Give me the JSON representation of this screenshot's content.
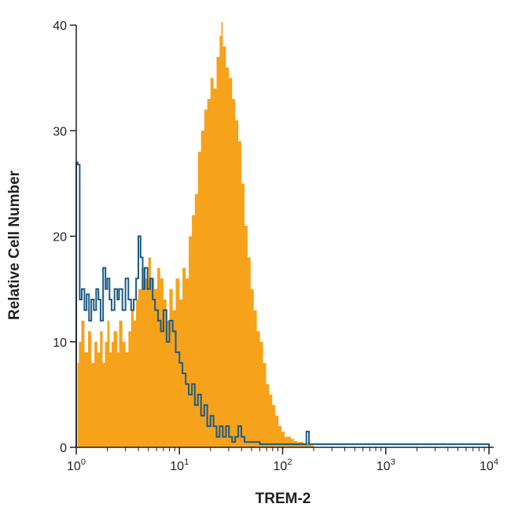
{
  "chart_data": {
    "type": "area",
    "xlabel": "TREM-2",
    "ylabel": "Relative Cell Number",
    "x_scale": "log",
    "xlim": [
      1,
      10000
    ],
    "ylim": [
      0,
      40
    ],
    "x_ticks": [
      1,
      10,
      100,
      1000,
      10000
    ],
    "x_tick_labels": [
      {
        "base": "10",
        "exp": "0"
      },
      {
        "base": "10",
        "exp": "1"
      },
      {
        "base": "10",
        "exp": "2"
      },
      {
        "base": "10",
        "exp": "3"
      },
      {
        "base": "10",
        "exp": "4"
      }
    ],
    "y_ticks": [
      0,
      10,
      20,
      30,
      40
    ],
    "grid": false,
    "legend": "none",
    "colors": {
      "filled": "#f7a21b",
      "outline": "#1b5a86",
      "axis": "#231f20"
    },
    "series": [
      {
        "style": "filled",
        "x": [
          1.0,
          1.03,
          1.06,
          1.12,
          1.2,
          1.3,
          1.4,
          1.5,
          1.6,
          1.7,
          1.8,
          1.9,
          2.0,
          2.1,
          2.2,
          2.3,
          2.5,
          2.6,
          2.8,
          3.0,
          3.2,
          3.4,
          3.6,
          3.8,
          4.0,
          4.3,
          4.6,
          5.0,
          5.3,
          5.7,
          6.1,
          6.5,
          7.0,
          7.5,
          8.0,
          8.6,
          9.2,
          10.0,
          10.7,
          11.5,
          12.3,
          13.2,
          14.1,
          15.1,
          16.2,
          17.4,
          18.6,
          20.0,
          21.4,
          22.9,
          24.5,
          25.5,
          26.3,
          28.2,
          30.2,
          32.4,
          34.7,
          37.2,
          39.8,
          42.7,
          45.7,
          49.0,
          52.5,
          56.2,
          60.3,
          64.6,
          69.2,
          74.1,
          79.4,
          85.1,
          91.2,
          97.7,
          104.7,
          112.2,
          120.2,
          128.8,
          138.0,
          147.9,
          158.5,
          169.8,
          182.0,
          190.0,
          200.0
        ],
        "values": [
          0,
          8,
          10,
          12,
          9,
          11,
          8,
          10,
          9,
          11,
          8,
          10,
          12,
          9,
          10,
          11,
          9,
          12,
          10,
          9,
          11,
          13,
          12,
          14,
          15,
          17,
          16,
          18,
          16,
          15,
          17,
          16,
          14,
          12,
          15,
          13,
          16,
          14,
          17,
          16,
          20,
          22,
          24,
          28,
          30,
          32,
          33,
          35,
          34,
          37,
          39,
          40.3,
          38,
          36,
          35,
          33,
          31,
          29,
          25,
          21,
          18,
          15,
          13,
          11,
          10,
          8,
          6,
          5,
          4,
          3,
          2,
          1.5,
          1,
          1,
          0.8,
          0.6,
          0.5,
          0.5,
          0.4,
          0.4,
          0.3,
          0.2,
          0
        ]
      },
      {
        "style": "outline",
        "x": [
          1.0,
          1.03,
          1.08,
          1.13,
          1.2,
          1.26,
          1.33,
          1.4,
          1.48,
          1.56,
          1.64,
          1.72,
          1.82,
          1.92,
          2.0,
          2.1,
          2.2,
          2.35,
          2.5,
          2.6,
          2.8,
          3.0,
          3.2,
          3.4,
          3.6,
          3.8,
          4.0,
          4.2,
          4.4,
          4.6,
          4.9,
          5.2,
          5.5,
          5.8,
          6.2,
          6.6,
          7.0,
          7.5,
          8.0,
          8.6,
          9.2,
          10.0,
          10.7,
          11.5,
          12.3,
          13.2,
          14.1,
          15.1,
          16.2,
          17.4,
          18.6,
          20.0,
          21.4,
          22.9,
          24.5,
          26.3,
          28.2,
          30.2,
          32.4,
          34.7,
          37.2,
          39.8,
          42.7,
          60.0,
          100.0,
          150.0,
          170.0,
          180.0,
          190.0,
          200.0,
          1000.0,
          10000.0
        ],
        "values": [
          27,
          26.8,
          14,
          15,
          13,
          14.5,
          12,
          14,
          13,
          15,
          14,
          12,
          17,
          15,
          16,
          14,
          13,
          15,
          14,
          15,
          13,
          16,
          14,
          13,
          14,
          16,
          20,
          18,
          15,
          17,
          15,
          16,
          14,
          13,
          12,
          11,
          13,
          10,
          12,
          11,
          9,
          8,
          7,
          6,
          5,
          6,
          4,
          5,
          3,
          4,
          2,
          3,
          2,
          1,
          2,
          1,
          2,
          1,
          0.5,
          1,
          2,
          1,
          0.5,
          0.3,
          0.3,
          0.3,
          1.5,
          0.3,
          0.3,
          0.3,
          0.3,
          0
        ]
      }
    ]
  }
}
